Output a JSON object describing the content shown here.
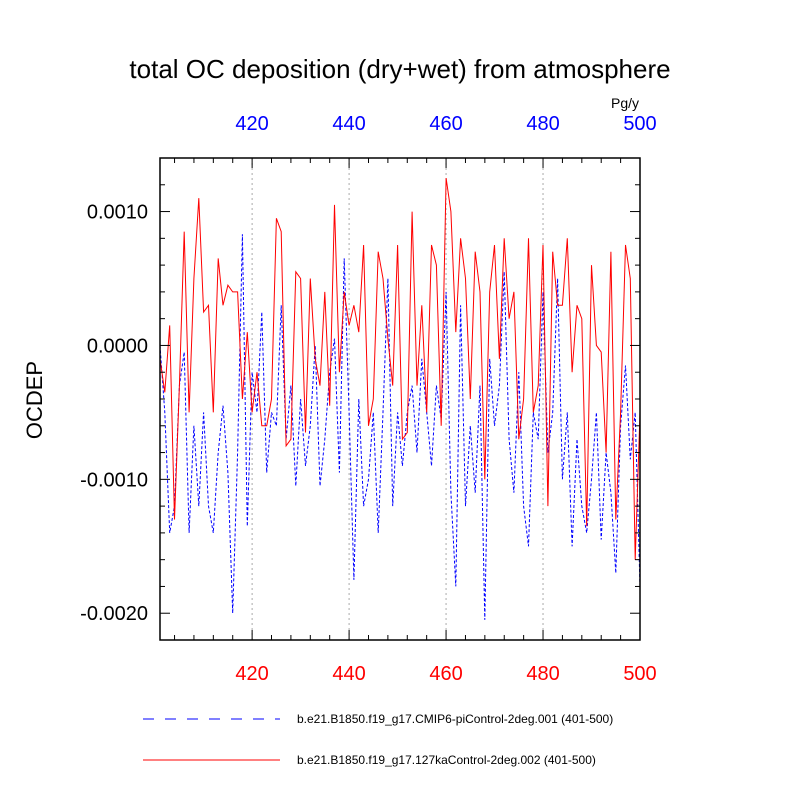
{
  "chart_data": {
    "type": "line",
    "title": "total OC deposition (dry+wet) from atmosphere",
    "ylabel": "OCDEP",
    "units": "Pg/y",
    "xlim": [
      401,
      500
    ],
    "ylim": [
      -0.0022,
      0.0014
    ],
    "x_ticks": [
      420,
      440,
      460,
      480,
      500
    ],
    "x_tick_labels": [
      "420",
      "440",
      "460",
      "480",
      "500"
    ],
    "y_ticks": [
      0.001,
      0.0,
      -0.001,
      -0.002
    ],
    "y_tick_labels": [
      "0.0010",
      "0.0000",
      "-0.0010",
      "-0.0020"
    ],
    "colors": {
      "bottom_axis": "#ff0000",
      "top_axis": "#0000ff"
    },
    "series": [
      {
        "name": "b.e21.B1850.f19_g17.CMIP6-piControl-2deg.001 (401-500)",
        "color": "#0000ff",
        "dash": "dashed",
        "x_start": 401,
        "values": [
          0.0,
          -0.0005,
          -0.0014,
          -0.0012,
          -0.0003,
          -5e-05,
          -0.0014,
          -0.0006,
          -0.0012,
          -0.0005,
          -0.0012,
          -0.0014,
          -0.0008,
          -0.00045,
          -0.00095,
          -0.002,
          -0.0008,
          0.00083,
          -0.00135,
          -0.0002,
          -0.0005,
          0.00025,
          -0.00095,
          -0.0005,
          -0.0006,
          0.0003,
          -0.0007,
          -0.0003,
          -0.00105,
          -0.0004,
          -0.0009,
          -0.0006,
          0.0,
          -0.00105,
          -0.0007,
          -0.0002,
          5e-05,
          -0.00095,
          0.00065,
          -0.0005,
          -0.00175,
          -0.0004,
          -0.0012,
          -0.001,
          -0.0005,
          -0.0014,
          -0.0005,
          0.0005,
          -0.0012,
          -0.0005,
          -0.0009,
          -0.0005,
          -0.0003,
          -0.0008,
          -0.0001,
          -0.0005,
          -0.0009,
          -0.0003,
          -0.00055,
          0.0004,
          -0.0011,
          -0.0018,
          0.0003,
          -0.0012,
          -0.0006,
          -0.0011,
          -0.0003,
          -0.00205,
          -0.0001,
          -0.0006,
          -0.0003,
          0.00055,
          -0.0007,
          -0.0011,
          -0.0002,
          -0.0012,
          -0.0015,
          -0.0005,
          -0.0007,
          0.0004,
          -0.0008,
          -0.0005,
          0.0005,
          -0.001,
          -0.0005,
          -0.0015,
          -0.0007,
          -0.0012,
          -0.0014,
          -0.001,
          -0.0005,
          -0.00145,
          -0.0008,
          -0.0011,
          -0.0017,
          -0.0006,
          -0.00015,
          -0.00085,
          -0.0005,
          -0.0018
        ]
      },
      {
        "name": "b.e21.B1850.f19_g17.127kaControl-2deg.002 (401-500)",
        "color": "#ff0000",
        "dash": "solid",
        "x_start": 401,
        "values": [
          -0.0001,
          -0.00035,
          0.00015,
          -0.0013,
          -0.0003,
          0.00085,
          -0.0005,
          0.0005,
          0.0011,
          0.00025,
          0.0003,
          -0.0005,
          0.00065,
          0.0003,
          0.00045,
          0.0004,
          0.0004,
          -0.0004,
          0.0001,
          -0.0005,
          -0.0002,
          -0.0006,
          -0.0006,
          -0.0004,
          0.00095,
          0.00085,
          -0.00075,
          -0.0007,
          0.00055,
          0.0005,
          -0.00065,
          0.0005,
          -0.0001,
          -0.0003,
          0.0004,
          -0.00045,
          0.00105,
          -0.0002,
          0.0004,
          0.00015,
          0.0003,
          0.0001,
          0.00075,
          -0.0006,
          -0.0004,
          0.0007,
          0.0005,
          5e-05,
          -0.0003,
          0.00075,
          -0.0007,
          -0.00065,
          0.001,
          -0.0003,
          0.0003,
          -0.0005,
          0.00075,
          0.0006,
          -0.0006,
          0.00125,
          0.001,
          0.0001,
          0.0008,
          0.0005,
          -0.0004,
          0.0007,
          0.0004,
          -0.001,
          0.0004,
          0.00075,
          -0.0001,
          0.0008,
          0.0002,
          0.0004,
          -0.0007,
          -0.0004,
          0.0008,
          -0.0005,
          -0.0003,
          0.00075,
          -0.0012,
          0.0007,
          0.0003,
          0.0003,
          0.0008,
          -0.0002,
          0.0003,
          0.0002,
          -0.00135,
          0.0006,
          0.0,
          -5e-05,
          -0.0008,
          0.0007,
          -0.0013,
          -0.0005,
          0.00075,
          0.0005,
          -0.0016,
          -0.0005
        ]
      }
    ]
  }
}
